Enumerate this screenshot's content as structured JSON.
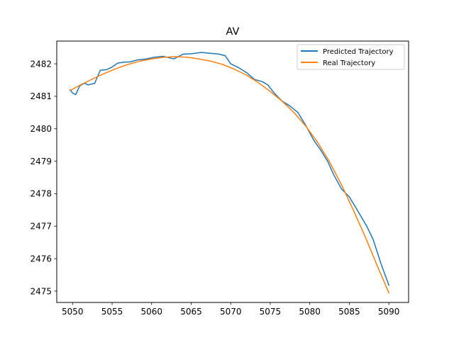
{
  "chart_data": {
    "type": "line",
    "title": "AV",
    "xlabel": "",
    "ylabel": "",
    "xlim": [
      5048.0,
      5092.5
    ],
    "ylim": [
      2474.65,
      2482.7
    ],
    "xticks": [
      5050,
      5055,
      5060,
      5065,
      5070,
      5075,
      5080,
      5085,
      5090
    ],
    "yticks": [
      2475,
      2476,
      2477,
      2478,
      2479,
      2480,
      2481,
      2482
    ],
    "grid": false,
    "legend_position": "top-right",
    "series": [
      {
        "name": "Predicted Trajectory",
        "color": "#1f77b4",
        "points": [
          [
            5049.7,
            2481.2
          ],
          [
            5050.0,
            2481.1
          ],
          [
            5050.4,
            2481.05
          ],
          [
            5050.9,
            2481.32
          ],
          [
            5051.5,
            2481.4
          ],
          [
            5052.0,
            2481.35
          ],
          [
            5052.8,
            2481.4
          ],
          [
            5053.5,
            2481.8
          ],
          [
            5054.3,
            2481.82
          ],
          [
            5055.0,
            2481.9
          ],
          [
            5055.7,
            2482.02
          ],
          [
            5056.5,
            2482.05
          ],
          [
            5057.3,
            2482.06
          ],
          [
            5058.2,
            2482.12
          ],
          [
            5059.3,
            2482.15
          ],
          [
            5060.3,
            2482.2
          ],
          [
            5061.5,
            2482.23
          ],
          [
            5062.8,
            2482.15
          ],
          [
            5064.0,
            2482.3
          ],
          [
            5065.0,
            2482.31
          ],
          [
            5066.3,
            2482.35
          ],
          [
            5067.5,
            2482.32
          ],
          [
            5068.5,
            2482.3
          ],
          [
            5069.3,
            2482.25
          ],
          [
            5070.0,
            2482.0
          ],
          [
            5071.0,
            2481.88
          ],
          [
            5072.0,
            2481.73
          ],
          [
            5073.0,
            2481.52
          ],
          [
            5074.0,
            2481.45
          ],
          [
            5074.7,
            2481.35
          ],
          [
            5075.5,
            2481.1
          ],
          [
            5076.5,
            2480.85
          ],
          [
            5077.5,
            2480.7
          ],
          [
            5078.5,
            2480.5
          ],
          [
            5079.5,
            2480.1
          ],
          [
            5080.5,
            2479.65
          ],
          [
            5081.5,
            2479.3
          ],
          [
            5082.3,
            2478.98
          ],
          [
            5083.0,
            2478.6
          ],
          [
            5084.0,
            2478.15
          ],
          [
            5085.0,
            2477.9
          ],
          [
            5086.0,
            2477.5
          ],
          [
            5087.2,
            2477.0
          ],
          [
            5088.0,
            2476.6
          ],
          [
            5089.0,
            2475.85
          ],
          [
            5090.0,
            2475.18
          ]
        ]
      },
      {
        "name": "Real Trajectory",
        "color": "#ff7f0e",
        "points": [
          [
            5049.7,
            2481.18
          ],
          [
            5051.0,
            2481.35
          ],
          [
            5052.5,
            2481.53
          ],
          [
            5054.0,
            2481.7
          ],
          [
            5055.5,
            2481.85
          ],
          [
            5057.0,
            2481.98
          ],
          [
            5058.5,
            2482.08
          ],
          [
            5060.0,
            2482.15
          ],
          [
            5061.5,
            2482.2
          ],
          [
            5063.0,
            2482.22
          ],
          [
            5064.5,
            2482.2
          ],
          [
            5066.0,
            2482.15
          ],
          [
            5067.5,
            2482.08
          ],
          [
            5069.0,
            2481.98
          ],
          [
            5070.5,
            2481.83
          ],
          [
            5072.0,
            2481.65
          ],
          [
            5073.5,
            2481.42
          ],
          [
            5075.0,
            2481.15
          ],
          [
            5076.5,
            2480.85
          ],
          [
            5078.0,
            2480.5
          ],
          [
            5079.5,
            2480.08
          ],
          [
            5081.0,
            2479.58
          ],
          [
            5082.5,
            2478.98
          ],
          [
            5084.0,
            2478.28
          ],
          [
            5085.5,
            2477.5
          ],
          [
            5087.0,
            2476.68
          ],
          [
            5088.5,
            2475.8
          ],
          [
            5090.0,
            2474.95
          ]
        ]
      }
    ]
  }
}
